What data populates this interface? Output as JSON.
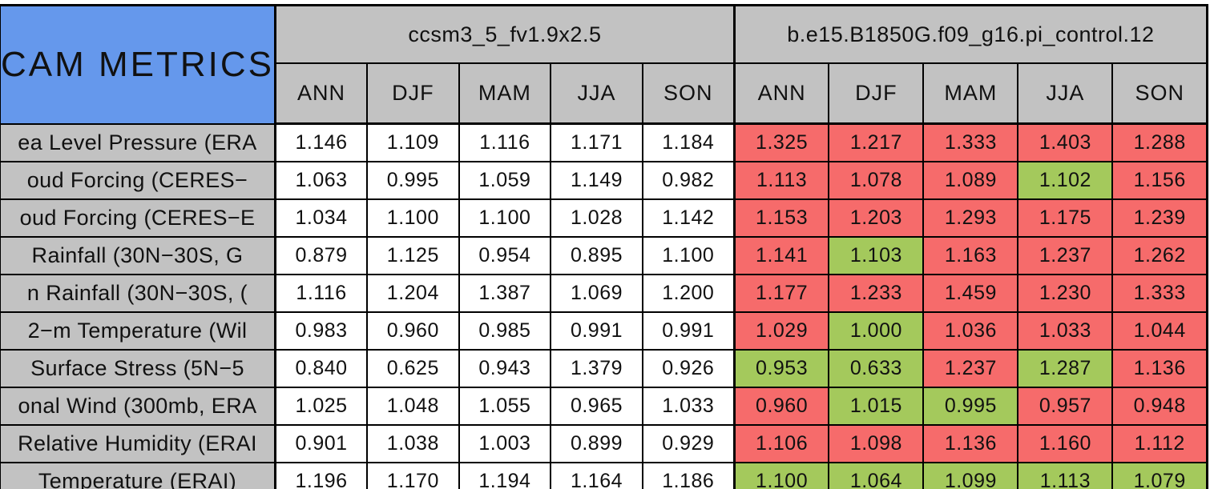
{
  "colors": {
    "header_blue": "#6598EC",
    "header_gray": "#C2C2C2",
    "cell_red": "#F66B6B",
    "cell_green": "#A4C95C",
    "cell_white": "#FFFFFF",
    "border": "#000000"
  },
  "chart_data": {
    "type": "table",
    "title": "CAM METRICS",
    "column_groups": [
      {
        "name": "ccsm3_5_fv1.9x2.5",
        "seasons": [
          "ANN",
          "DJF",
          "MAM",
          "JJA",
          "SON"
        ]
      },
      {
        "name": "b.e15.B1850G.f09_g16.pi_control.12",
        "seasons": [
          "ANN",
          "DJF",
          "MAM",
          "JJA",
          "SON"
        ]
      }
    ],
    "rows": [
      {
        "label": "ea Level Pressure (ERA",
        "model1_values": [
          "1.146",
          "1.109",
          "1.116",
          "1.171",
          "1.184"
        ],
        "model2_values": [
          "1.325",
          "1.217",
          "1.333",
          "1.403",
          "1.288"
        ],
        "model2_status": [
          "red",
          "red",
          "red",
          "red",
          "red"
        ]
      },
      {
        "label": "oud Forcing (CERES−",
        "model1_values": [
          "1.063",
          "0.995",
          "1.059",
          "1.149",
          "0.982"
        ],
        "model2_values": [
          "1.113",
          "1.078",
          "1.089",
          "1.102",
          "1.156"
        ],
        "model2_status": [
          "red",
          "red",
          "red",
          "green",
          "red"
        ]
      },
      {
        "label": "oud Forcing (CERES−E",
        "model1_values": [
          "1.034",
          "1.100",
          "1.100",
          "1.028",
          "1.142"
        ],
        "model2_values": [
          "1.153",
          "1.203",
          "1.293",
          "1.175",
          "1.239"
        ],
        "model2_status": [
          "red",
          "red",
          "red",
          "red",
          "red"
        ]
      },
      {
        "label": "Rainfall (30N−30S, G",
        "model1_values": [
          "0.879",
          "1.125",
          "0.954",
          "0.895",
          "1.100"
        ],
        "model2_values": [
          "1.141",
          "1.103",
          "1.163",
          "1.237",
          "1.262"
        ],
        "model2_status": [
          "red",
          "green",
          "red",
          "red",
          "red"
        ]
      },
      {
        "label": "n Rainfall (30N−30S, (",
        "model1_values": [
          "1.116",
          "1.204",
          "1.387",
          "1.069",
          "1.200"
        ],
        "model2_values": [
          "1.177",
          "1.233",
          "1.459",
          "1.230",
          "1.333"
        ],
        "model2_status": [
          "red",
          "red",
          "red",
          "red",
          "red"
        ]
      },
      {
        "label": "2−m Temperature (Wil",
        "model1_values": [
          "0.983",
          "0.960",
          "0.985",
          "0.991",
          "0.991"
        ],
        "model2_values": [
          "1.029",
          "1.000",
          "1.036",
          "1.033",
          "1.044"
        ],
        "model2_status": [
          "red",
          "green",
          "red",
          "red",
          "red"
        ]
      },
      {
        "label": "Surface Stress (5N−5",
        "model1_values": [
          "0.840",
          "0.625",
          "0.943",
          "1.379",
          "0.926"
        ],
        "model2_values": [
          "0.953",
          "0.633",
          "1.237",
          "1.287",
          "1.136"
        ],
        "model2_status": [
          "green",
          "green",
          "red",
          "green",
          "red"
        ]
      },
      {
        "label": "onal Wind (300mb, ERA",
        "model1_values": [
          "1.025",
          "1.048",
          "1.055",
          "0.965",
          "1.033"
        ],
        "model2_values": [
          "0.960",
          "1.015",
          "0.995",
          "0.957",
          "0.948"
        ],
        "model2_status": [
          "red",
          "green",
          "green",
          "red",
          "red"
        ]
      },
      {
        "label": "Relative Humidity (ERAI",
        "model1_values": [
          "0.901",
          "1.038",
          "1.003",
          "0.899",
          "0.929"
        ],
        "model2_values": [
          "1.106",
          "1.098",
          "1.136",
          "1.160",
          "1.112"
        ],
        "model2_status": [
          "red",
          "red",
          "red",
          "red",
          "red"
        ]
      },
      {
        "label": "Temperature (ERAI)",
        "model1_values": [
          "1.196",
          "1.170",
          "1.194",
          "1.164",
          "1.186"
        ],
        "model2_values": [
          "1.100",
          "1.064",
          "1.099",
          "1.113",
          "1.079"
        ],
        "model2_status": [
          "green",
          "green",
          "green",
          "green",
          "green"
        ]
      }
    ]
  }
}
